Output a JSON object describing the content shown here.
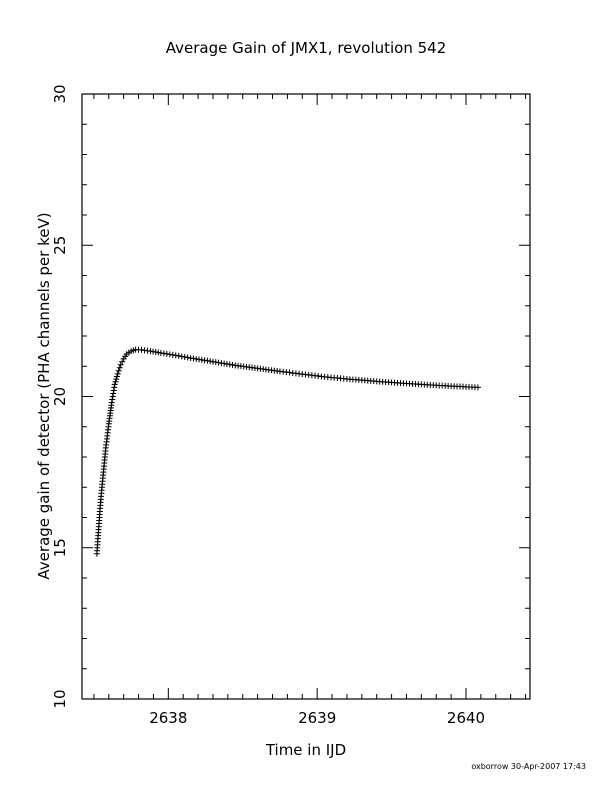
{
  "chart_data": {
    "type": "scatter",
    "title": "Average Gain of JMX1, revolution 542",
    "xlabel": "Time in IJD",
    "ylabel": "Average gain of detector (PHA channels per keV)",
    "xlim": [
      2637.42,
      2640.43
    ],
    "ylim": [
      10,
      30
    ],
    "x_major_ticks": [
      2638,
      2639,
      2640
    ],
    "x_tick_labels": [
      "2638",
      "2639",
      "2640"
    ],
    "y_major_ticks": [
      10,
      15,
      20,
      25,
      30
    ],
    "y_tick_labels": [
      "10",
      "15",
      "20",
      "25",
      "30"
    ],
    "marker": "plus",
    "grid": false,
    "series": [
      {
        "points": [
          [
            2637.52,
            14.8
          ],
          [
            2637.53,
            15.5
          ],
          [
            2637.54,
            16.2
          ],
          [
            2637.55,
            16.8
          ],
          [
            2637.56,
            17.3
          ],
          [
            2637.57,
            17.8
          ],
          [
            2637.58,
            18.3
          ],
          [
            2637.59,
            18.7
          ],
          [
            2637.6,
            19.1
          ],
          [
            2637.61,
            19.45
          ],
          [
            2637.62,
            19.8
          ],
          [
            2637.63,
            20.1
          ],
          [
            2637.64,
            20.4
          ],
          [
            2637.66,
            20.75
          ],
          [
            2637.68,
            21.05
          ],
          [
            2637.7,
            21.25
          ],
          [
            2637.72,
            21.4
          ],
          [
            2637.75,
            21.5
          ],
          [
            2637.78,
            21.55
          ],
          [
            2637.82,
            21.54
          ],
          [
            2637.88,
            21.5
          ],
          [
            2637.95,
            21.44
          ],
          [
            2638.05,
            21.36
          ],
          [
            2638.15,
            21.27
          ],
          [
            2638.3,
            21.15
          ],
          [
            2638.45,
            21.03
          ],
          [
            2638.6,
            20.93
          ],
          [
            2638.75,
            20.83
          ],
          [
            2638.9,
            20.74
          ],
          [
            2639.05,
            20.65
          ],
          [
            2639.2,
            20.58
          ],
          [
            2639.4,
            20.5
          ],
          [
            2639.6,
            20.43
          ],
          [
            2639.8,
            20.37
          ],
          [
            2640.0,
            20.32
          ],
          [
            2640.08,
            20.3
          ]
        ]
      }
    ]
  },
  "footer": {
    "stamp": "oxborrow 30-Apr-2007 17:43"
  }
}
